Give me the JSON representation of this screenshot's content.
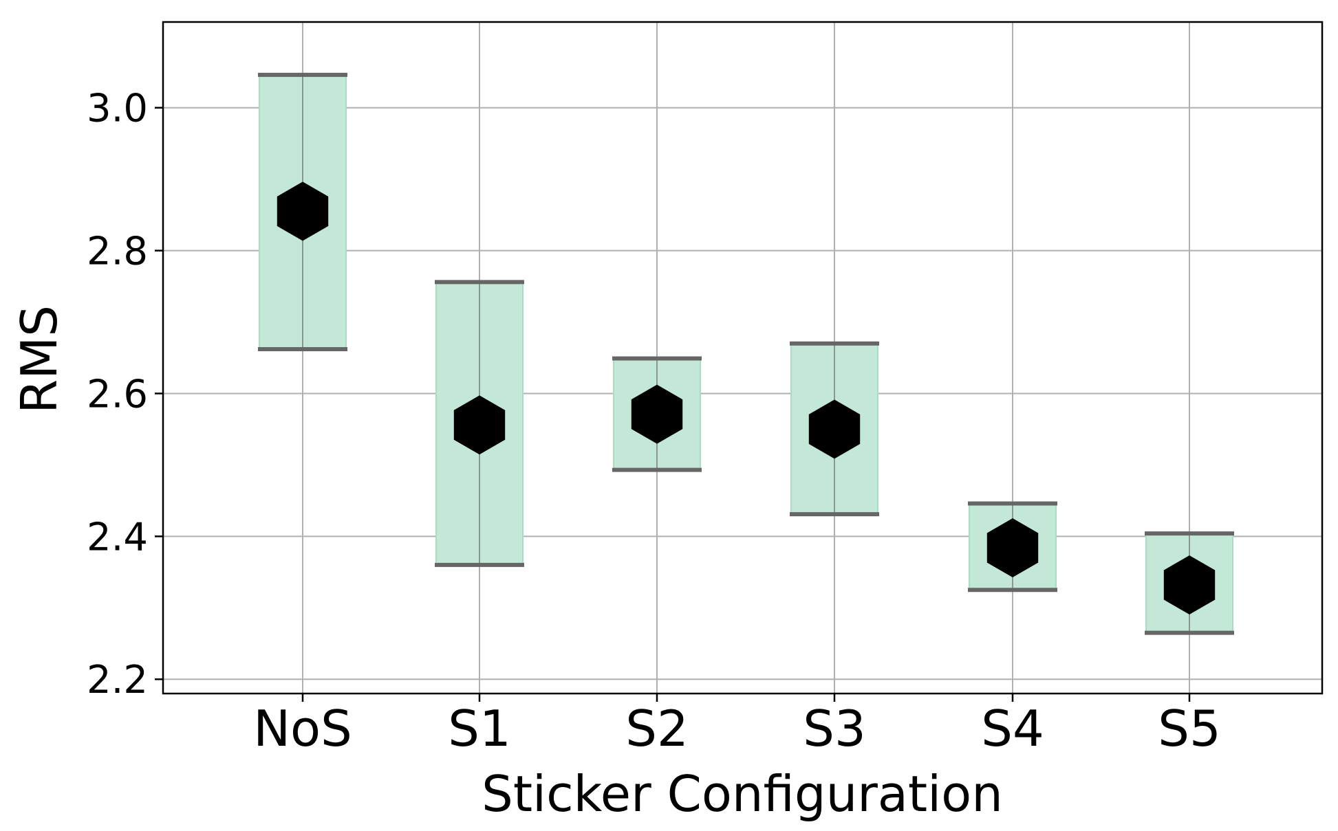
{
  "chart_data": {
    "type": "scatter",
    "xlabel": "Sticker Configuration",
    "ylabel": "RMS",
    "categories": [
      "NoS",
      "S1",
      "S2",
      "S3",
      "S4",
      "S5"
    ],
    "series": [
      {
        "values": [
          2.855,
          2.556,
          2.571,
          2.55,
          2.384,
          2.332
        ],
        "lower": [
          2.662,
          2.36,
          2.493,
          2.431,
          2.325,
          2.265
        ],
        "upper": [
          3.046,
          2.756,
          2.649,
          2.67,
          2.446,
          2.404
        ]
      }
    ],
    "ylim": [
      2.18,
      3.12
    ],
    "yticks": [
      "2.2",
      "2.4",
      "2.6",
      "2.8",
      "3.0"
    ],
    "ytick_values": [
      2.2,
      2.4,
      2.6,
      2.8,
      3.0
    ],
    "grid": true,
    "colors": {
      "band_fill": "#c4e8d7",
      "band_edge": "#a9dcc3",
      "cap": "#666666",
      "marker": "#000000",
      "grid": "#b0b0b0",
      "axis": "#000000"
    }
  }
}
